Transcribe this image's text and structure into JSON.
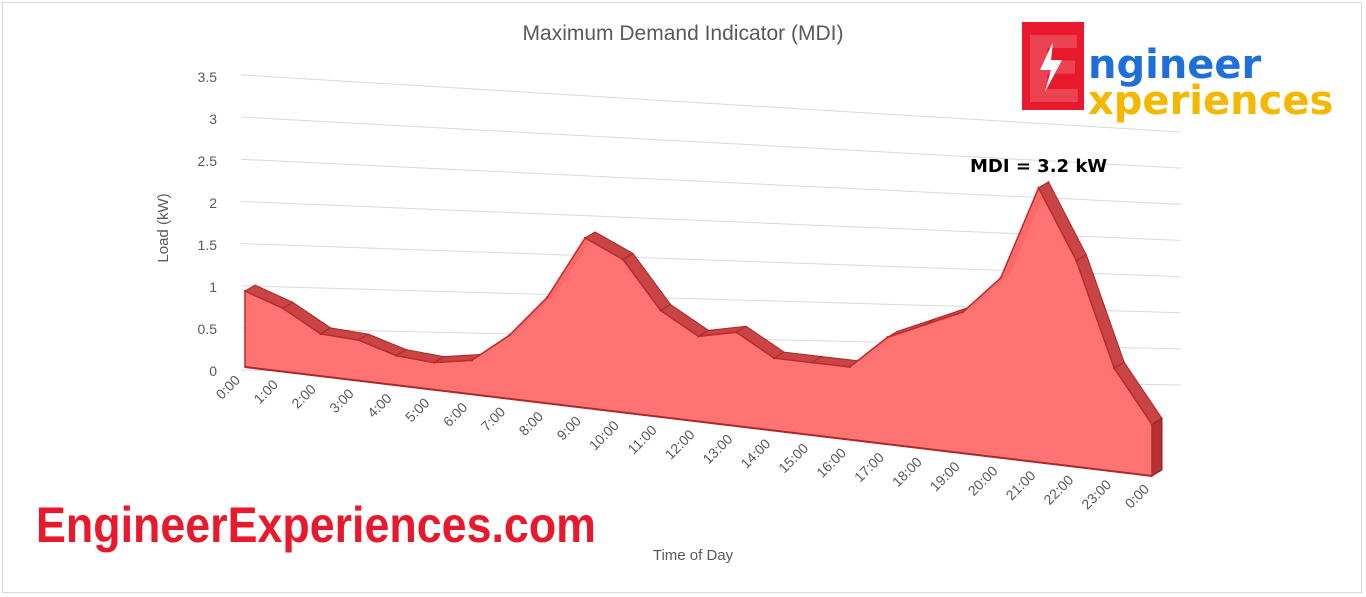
{
  "chart_data": {
    "type": "area",
    "title": "Maximum Demand Indicator (MDI)",
    "xlabel": "Time of Day",
    "ylabel": "Load (kW)",
    "ylim": [
      0,
      3.5
    ],
    "y_ticks": [
      "0",
      "0.5",
      "1",
      "1.5",
      "2",
      "2.5",
      "3",
      "3.5"
    ],
    "categories": [
      "0:00",
      "1:00",
      "2:00",
      "3:00",
      "4:00",
      "5:00",
      "6:00",
      "7:00",
      "8:00",
      "9:00",
      "10:00",
      "11:00",
      "12:00",
      "13:00",
      "14:00",
      "15:00",
      "16:00",
      "17:00",
      "18:00",
      "19:00",
      "20:00",
      "21:00",
      "22:00",
      "23:00",
      "0:00"
    ],
    "values": [
      0.9,
      0.75,
      0.5,
      0.48,
      0.35,
      0.32,
      0.4,
      0.75,
      1.25,
      2.0,
      1.8,
      1.25,
      1.0,
      1.1,
      0.85,
      0.85,
      0.85,
      1.25,
      1.45,
      1.65,
      2.1,
      3.2,
      2.4,
      1.2,
      0.6
    ],
    "grid": true,
    "color": "#ff6b6b",
    "annotation": {
      "text": "MDI = 3.2 kW",
      "at_index": 21
    }
  },
  "watermark": {
    "text": "EngineerExperiences.com"
  },
  "logo": {
    "line1": "ngineer",
    "line2": "xperiences",
    "initial": "E"
  }
}
